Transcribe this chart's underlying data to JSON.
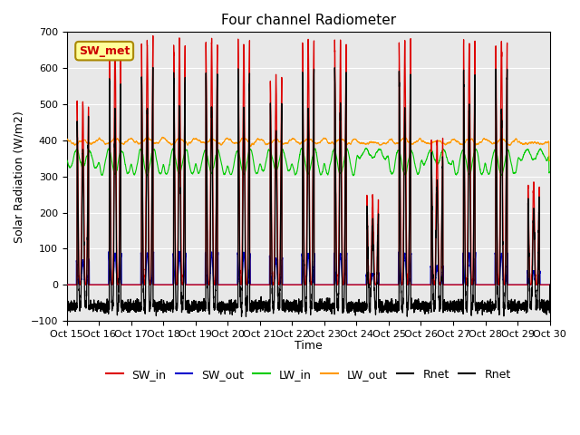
{
  "title": "Four channel Radiometer",
  "xlabel": "Time",
  "ylabel": "Solar Radiation (W/m2)",
  "ylim": [
    -100,
    700
  ],
  "background_color": "#e8e8e8",
  "legend_label": "SW_met",
  "series_labels": [
    "SW_in",
    "SW_out",
    "LW_in",
    "LW_out",
    "Rnet",
    "Rnet"
  ],
  "series_colors": [
    "#dd0000",
    "#0000cc",
    "#00cc00",
    "#ff9900",
    "#000000",
    "#000000"
  ],
  "x_tick_labels": [
    "Oct 15",
    "Oct 16",
    "Oct 17",
    "Oct 18",
    "Oct 19",
    "Oct 20",
    "Oct 21",
    "Oct 22",
    "Oct 23",
    "Oct 24",
    "Oct 25",
    "Oct 26",
    "Oct 27",
    "Oct 28",
    "Oct 29",
    "Oct 30"
  ],
  "n_points": 4320,
  "days": 15,
  "SW_in_peak": 670,
  "LW_in_night": 375,
  "LW_in_day": 305,
  "LW_out_base": 390,
  "Rnet_night": -60
}
